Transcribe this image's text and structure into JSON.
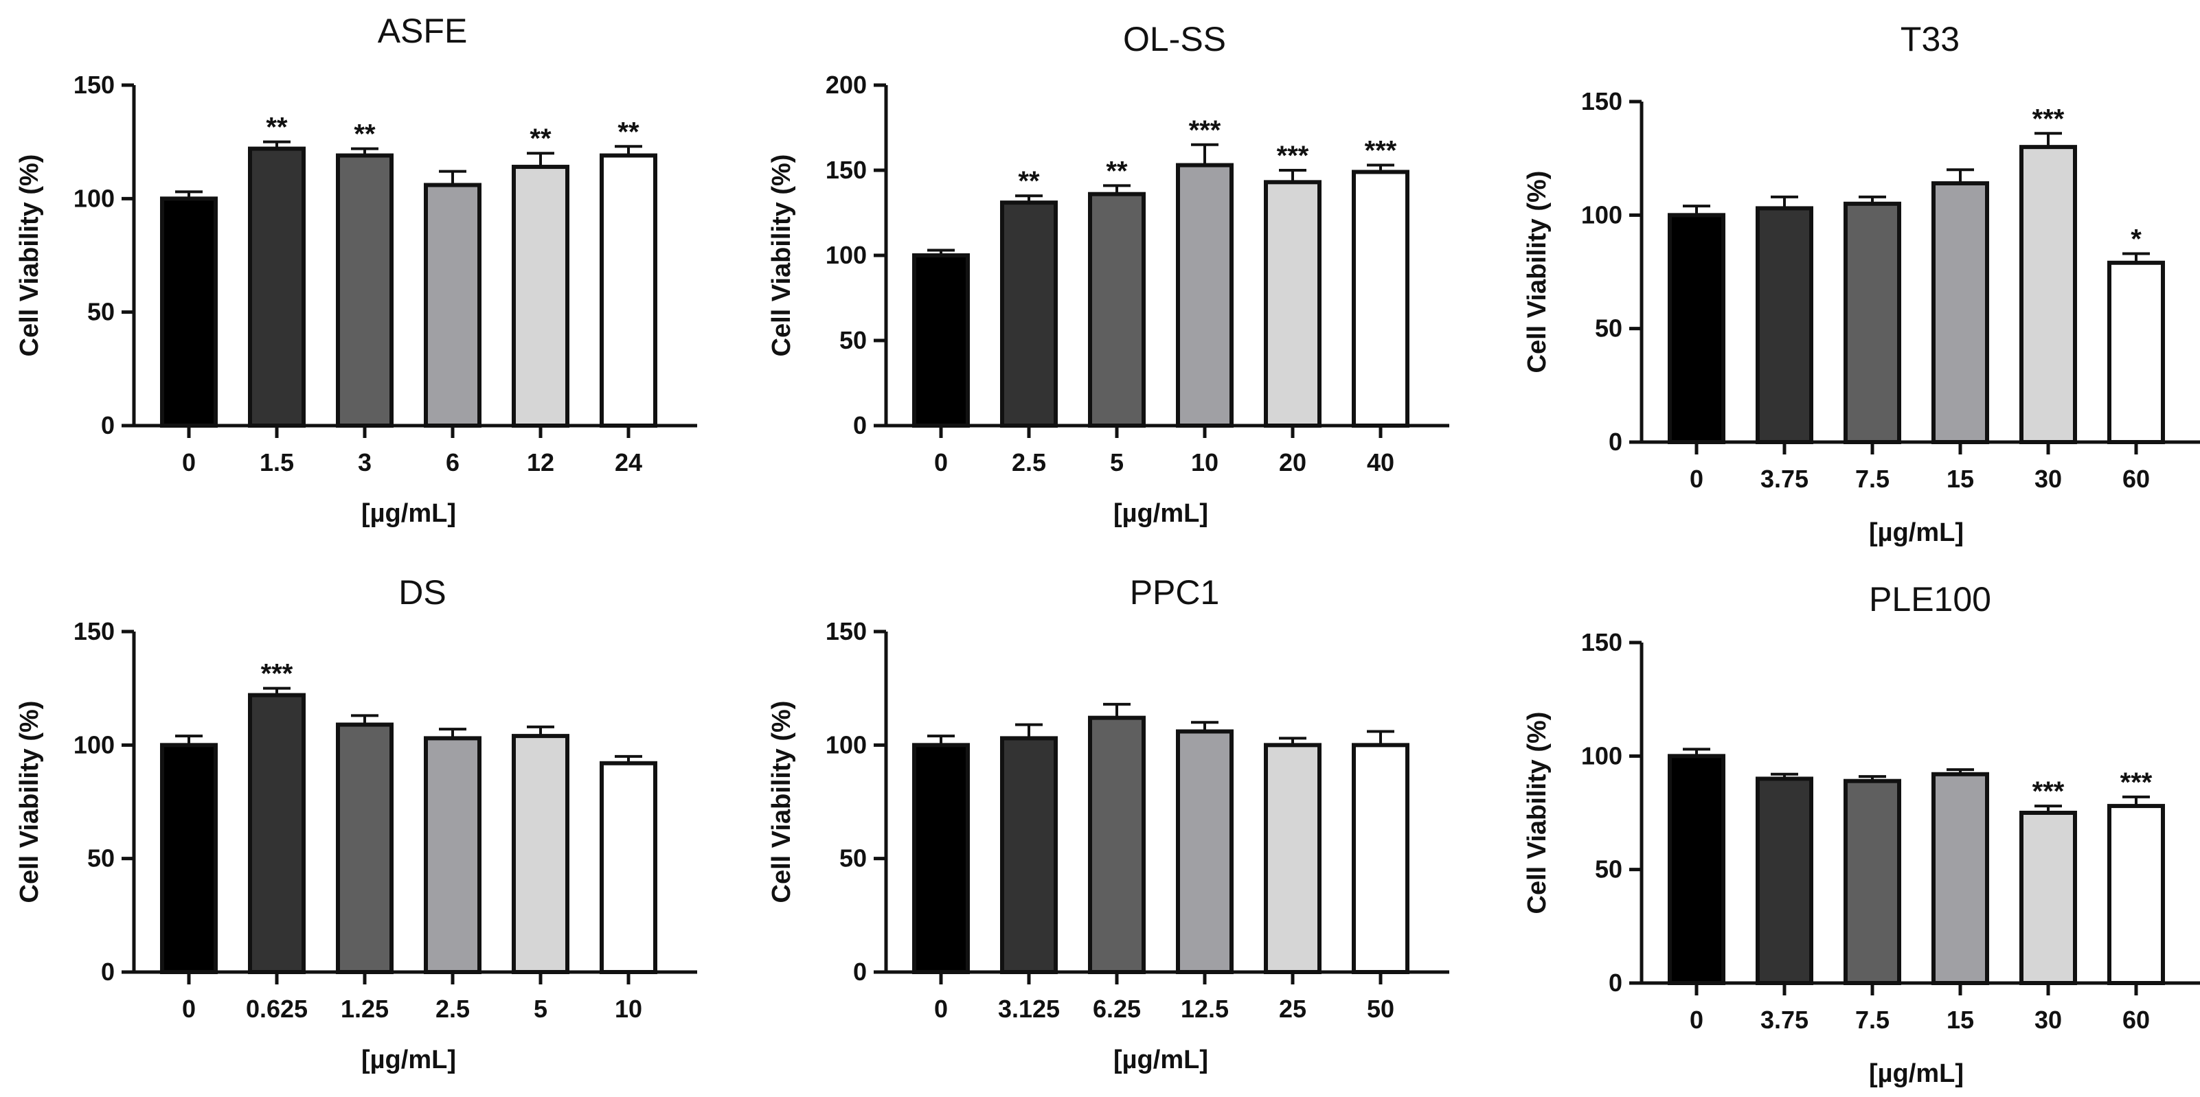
{
  "chart_data": [
    {
      "type": "bar",
      "title": "ASFE",
      "xlabel": "[µg/mL]",
      "ylabel": "Cell Viability (%)",
      "ylim": [
        0,
        150
      ],
      "yticks": [
        0,
        50,
        100,
        150
      ],
      "categories": [
        "0",
        "1.5",
        "3",
        "6",
        "12",
        "24"
      ],
      "values": [
        100,
        122,
        119,
        106,
        114,
        119
      ],
      "errors": [
        3,
        3,
        3,
        6,
        6,
        4
      ],
      "significance": [
        "",
        "**",
        "**",
        "",
        "**",
        "**"
      ]
    },
    {
      "type": "bar",
      "title": "OL-SS",
      "xlabel": "[µg/mL]",
      "ylabel": "Cell Viability (%)",
      "ylim": [
        0,
        200
      ],
      "yticks": [
        0,
        50,
        100,
        150,
        200
      ],
      "categories": [
        "0",
        "2.5",
        "5",
        "10",
        "20",
        "40"
      ],
      "values": [
        100,
        131,
        136,
        153,
        143,
        149
      ],
      "errors": [
        3,
        4,
        5,
        12,
        7,
        4
      ],
      "significance": [
        "",
        "**",
        "**",
        "***",
        "***",
        "***"
      ]
    },
    {
      "type": "bar",
      "title": "T33",
      "xlabel": "[µg/mL]",
      "ylabel": "Cell Viability (%)",
      "ylim": [
        0,
        150
      ],
      "yticks": [
        0,
        50,
        100,
        150
      ],
      "categories": [
        "0",
        "3.75",
        "7.5",
        "15",
        "30",
        "60"
      ],
      "values": [
        100,
        103,
        105,
        114,
        130,
        79
      ],
      "errors": [
        4,
        5,
        3,
        6,
        6,
        4
      ],
      "significance": [
        "",
        "",
        "",
        "",
        "***",
        "*"
      ]
    },
    {
      "type": "bar",
      "title": "DS",
      "xlabel": "[µg/mL]",
      "ylabel": "Cell Viability (%)",
      "ylim": [
        0,
        150
      ],
      "yticks": [
        0,
        50,
        100,
        150
      ],
      "categories": [
        "0",
        "0.625",
        "1.25",
        "2.5",
        "5",
        "10"
      ],
      "values": [
        100,
        122,
        109,
        103,
        104,
        92
      ],
      "errors": [
        4,
        3,
        4,
        4,
        4,
        3
      ],
      "significance": [
        "",
        "***",
        "",
        "",
        "",
        ""
      ]
    },
    {
      "type": "bar",
      "title": "PPC1",
      "xlabel": "[µg/mL]",
      "ylabel": "Cell Viability (%)",
      "ylim": [
        0,
        150
      ],
      "yticks": [
        0,
        50,
        100,
        150
      ],
      "categories": [
        "0",
        "3.125",
        "6.25",
        "12.5",
        "25",
        "50"
      ],
      "values": [
        100,
        103,
        112,
        106,
        100,
        100
      ],
      "errors": [
        4,
        6,
        6,
        4,
        3,
        6
      ],
      "significance": [
        "",
        "",
        "",
        "",
        "",
        ""
      ]
    },
    {
      "type": "bar",
      "title": "PLE100",
      "xlabel": "[µg/mL]",
      "ylabel": "Cell Viability (%)",
      "ylim": [
        0,
        150
      ],
      "yticks": [
        0,
        50,
        100,
        150
      ],
      "categories": [
        "0",
        "3.75",
        "7.5",
        "15",
        "30",
        "60"
      ],
      "values": [
        100,
        90,
        89,
        92,
        75,
        78
      ],
      "errors": [
        3,
        2,
        2,
        2,
        3,
        4
      ],
      "significance": [
        "",
        "",
        "",
        "",
        "***",
        "***"
      ]
    }
  ],
  "bar_colors": [
    "#000000",
    "#333333",
    "#5f5f5f",
    "#a0a0a4",
    "#d6d6d6",
    "#ffffff"
  ]
}
